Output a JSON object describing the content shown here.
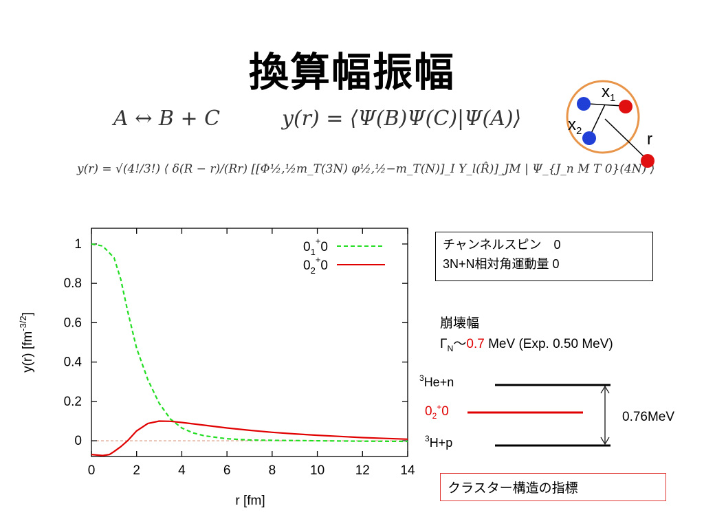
{
  "slide": {
    "title": "換算幅振幅",
    "eq_reaction": "A ↔ B + C",
    "eq_overlap": "y(r) = ⟨Ψ(B)Ψ(C)|Ψ(A)⟩",
    "eq_full": "y(r) = √(4!/3!) ⟨ δ(R − r)/(Rr) [[Φ½,½m_T(3N) φ½,½−m_T(N)]_I Y_l(R̂)]_JM | Ψ_{J_n M T 0}(4N) ⟩"
  },
  "info": {
    "line1": "チャンネルスピン　0",
    "line2": "3N+N相対角運動量 0"
  },
  "decay": {
    "label": "崩壊幅",
    "gamma": "Γ",
    "gamma_sub": "N",
    "tilde": "〜",
    "value": "0.7",
    "rest": " MeV (Exp. 0.50 MeV)"
  },
  "levels": {
    "he_n_sup": "3",
    "he_n": "He+n",
    "state_main": "0",
    "state_sub": "2",
    "state_sup": "+",
    "state_rest": "0",
    "h_p_sup": "3",
    "h_p": "H+p",
    "gap": "0.76MeV",
    "colors": {
      "state": "#e00000",
      "levels": "#000000"
    }
  },
  "cluster": {
    "label": "クラスター構造の指標"
  },
  "diagram": {
    "x1": "x",
    "x1_sub": "1",
    "x2": "x",
    "x2_sub": "2",
    "r": "r",
    "colors": {
      "ring": "#e8954a",
      "blue": "#1f3fd6",
      "red": "#e01010"
    }
  },
  "chart_data": {
    "type": "line",
    "xlabel": "r [fm]",
    "ylabel": "y(r) [fm",
    "ylabel_sup": "-3/2",
    "ylabel_end": "]",
    "xlim": [
      0,
      14
    ],
    "ylim": [
      -0.08,
      1.08
    ],
    "xticks": [
      "0",
      "2",
      "4",
      "6",
      "8",
      "10",
      "12",
      "14"
    ],
    "yticks": [
      "0",
      "0.2",
      "0.4",
      "0.6",
      "0.8",
      "1"
    ],
    "zero_line": true,
    "legend_position": "top-right",
    "series": [
      {
        "name": "0₁⁺0",
        "name_main": "0",
        "name_sub": "1",
        "name_sup": "+",
        "name_rest": "0",
        "color": "#22dd22",
        "dash": true,
        "x": [
          0,
          0.5,
          1.0,
          1.3,
          1.6,
          2.0,
          2.5,
          3.0,
          3.5,
          4.0,
          4.5,
          5.0,
          6.0,
          7.0,
          8.0,
          10.0,
          12.0,
          14.0
        ],
        "y": [
          1.0,
          0.99,
          0.93,
          0.82,
          0.66,
          0.47,
          0.31,
          0.19,
          0.11,
          0.065,
          0.04,
          0.025,
          0.01,
          0.004,
          0.002,
          0.0,
          -0.002,
          -0.003
        ]
      },
      {
        "name": "0₂⁺0",
        "name_main": "0",
        "name_sub": "2",
        "name_sup": "+",
        "name_rest": "0",
        "color": "#e00000",
        "dash": false,
        "x": [
          0,
          0.5,
          0.8,
          1.0,
          1.3,
          1.6,
          2.0,
          2.5,
          3.0,
          3.5,
          4.0,
          5.0,
          6.0,
          7.0,
          8.0,
          9.0,
          10.0,
          11.0,
          12.0,
          13.0,
          14.0
        ],
        "y": [
          -0.07,
          -0.075,
          -0.07,
          -0.055,
          -0.03,
          0.0,
          0.05,
          0.088,
          0.1,
          0.099,
          0.093,
          0.079,
          0.065,
          0.053,
          0.043,
          0.035,
          0.028,
          0.022,
          0.016,
          0.012,
          0.008
        ]
      }
    ]
  }
}
